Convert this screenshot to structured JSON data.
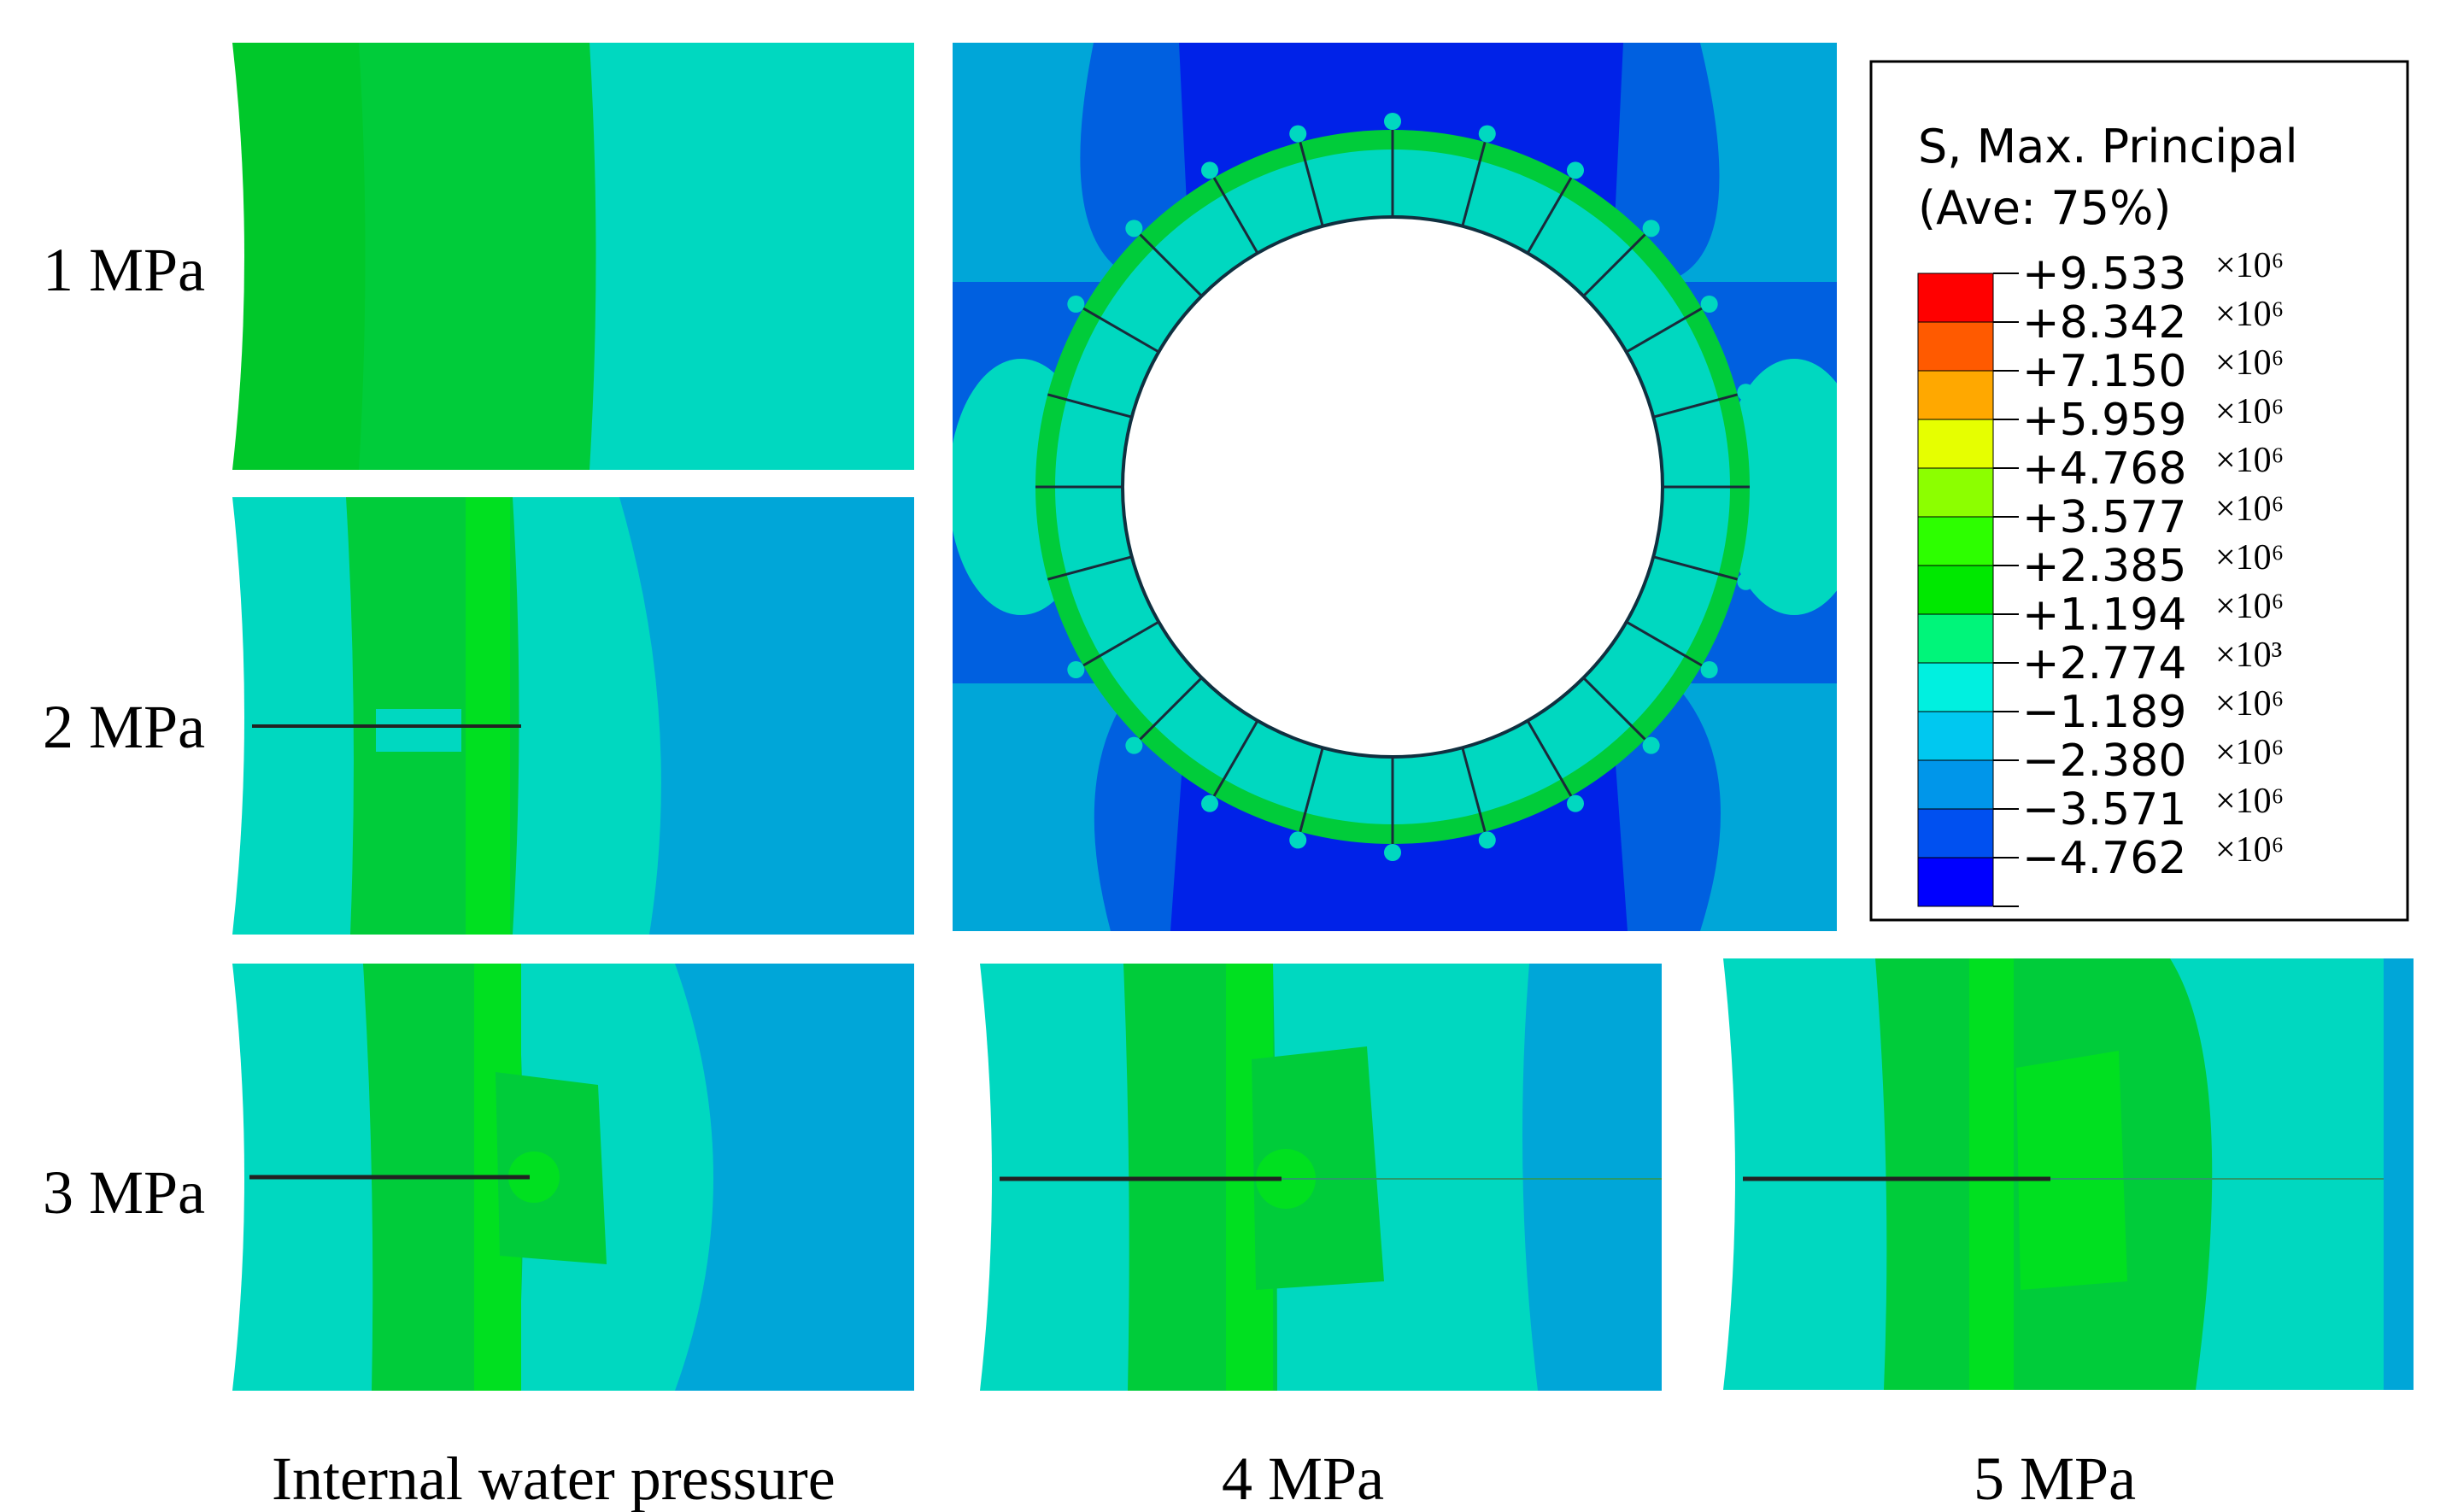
{
  "figure": {
    "panel_labels": [
      "1 MPa",
      "2 MPa",
      "3 MPa",
      "4 MPa",
      "5 MPa"
    ],
    "caption": "Internal water pressure"
  },
  "legend": {
    "title_line1": "S, Max. Principal",
    "title_line2": "(Ave: 75%)",
    "entries": [
      {
        "value": "+9.533",
        "exp": "×10⁶",
        "color": "#ff0000"
      },
      {
        "value": "+8.342",
        "exp": "×10⁶",
        "color": "#ff5a00"
      },
      {
        "value": "+7.150",
        "exp": "×10⁶",
        "color": "#ffa800"
      },
      {
        "value": "+5.959",
        "exp": "×10⁶",
        "color": "#e6ff00"
      },
      {
        "value": "+4.768",
        "exp": "×10⁶",
        "color": "#8cff00"
      },
      {
        "value": "+3.577",
        "exp": "×10⁶",
        "color": "#2dff00"
      },
      {
        "value": "+2.385",
        "exp": "×10⁶",
        "color": "#00e800"
      },
      {
        "value": "+1.194",
        "exp": "×10⁶",
        "color": "#00f57a"
      },
      {
        "value": "+2.774",
        "exp": "×10³",
        "color": "#00f0e0"
      },
      {
        "value": "−1.189",
        "exp": "×10⁶",
        "color": "#00c8f0"
      },
      {
        "value": "−2.380",
        "exp": "×10⁶",
        "color": "#0096ea"
      },
      {
        "value": "−3.571",
        "exp": "×10⁶",
        "color": "#0050f0"
      },
      {
        "value": "−4.762",
        "exp": "×10⁶",
        "color": "#0000ff"
      }
    ]
  },
  "colors": {
    "contour_cyan": "#00d8c0",
    "contour_green": "#00cc3a",
    "contour_bright_green": "#00e020",
    "contour_light_blue": "#00a6d8",
    "contour_blue": "#0060e0",
    "contour_dark_blue": "#0022e8"
  }
}
